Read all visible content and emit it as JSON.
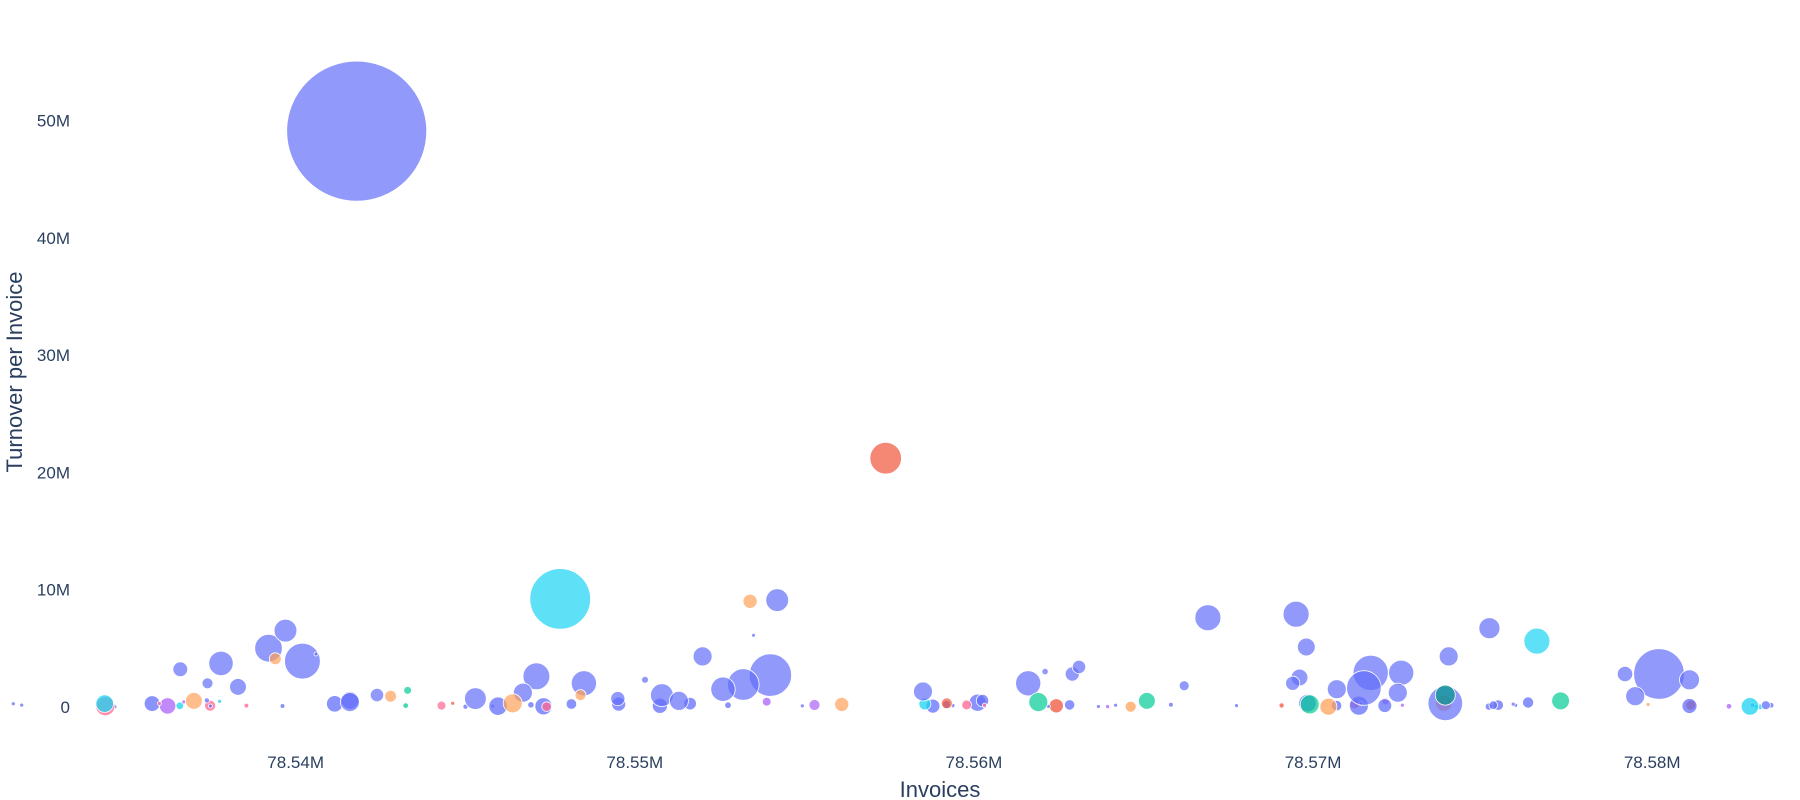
{
  "chart_data": {
    "type": "scatter",
    "title": "",
    "xlabel": "Invoices",
    "ylabel": "Turnover per Invoice",
    "xlim": [
      78536000,
      78582000
    ],
    "ylim": [
      -700000,
      59000000
    ],
    "grid": false,
    "legend": "none",
    "x_ticks": [
      {
        "value": 78540000,
        "label": "78.54M"
      },
      {
        "value": 78550000,
        "label": "78.55M"
      },
      {
        "value": 78560000,
        "label": "78.56M"
      },
      {
        "value": 78570000,
        "label": "78.57M"
      },
      {
        "value": 78580000,
        "label": "78.58M"
      }
    ],
    "y_ticks": [
      {
        "value": 0,
        "label": "0"
      },
      {
        "value": 10000000,
        "label": "10M"
      },
      {
        "value": 20000000,
        "label": "20M"
      },
      {
        "value": 30000000,
        "label": "30M"
      },
      {
        "value": 40000000,
        "label": "40M"
      },
      {
        "value": 50000000,
        "label": "50M"
      }
    ],
    "colors": {
      "blue": "#636efa",
      "red": "#ef553b",
      "green": "#00cc96",
      "orange": "#ffa15a",
      "cyan": "#19d3f3",
      "purple": "#ab63fa",
      "pink": "#ff6692",
      "teal": "#009688"
    },
    "points": [
      {
        "x": 78541800,
        "y": 49100000,
        "size": 49100000,
        "color": "blue"
      },
      {
        "x": 78557400,
        "y": 21200000,
        "size": 2500000,
        "color": "red"
      },
      {
        "x": 78547800,
        "y": 9200000,
        "size": 9200000,
        "color": "cyan"
      },
      {
        "x": 78553400,
        "y": 9000000,
        "size": 500000,
        "color": "orange"
      },
      {
        "x": 78554200,
        "y": 9100000,
        "size": 1300000,
        "color": "blue"
      },
      {
        "x": 78553500,
        "y": 6100000,
        "size": 20000,
        "color": "blue"
      },
      {
        "x": 78540600,
        "y": 4500000,
        "size": 20000,
        "color": "blue"
      },
      {
        "x": 78536600,
        "y": 3200000,
        "size": 550000,
        "color": "blue"
      },
      {
        "x": 78537800,
        "y": 3700000,
        "size": 1500000,
        "color": "blue"
      },
      {
        "x": 78538300,
        "y": 1700000,
        "size": 700000,
        "color": "blue"
      },
      {
        "x": 78537400,
        "y": 2000000,
        "size": 300000,
        "color": "blue"
      },
      {
        "x": 78539200,
        "y": 5000000,
        "size": 1900000,
        "color": "blue"
      },
      {
        "x": 78539400,
        "y": 4100000,
        "size": 350000,
        "color": "orange"
      },
      {
        "x": 78539700,
        "y": 6500000,
        "size": 1300000,
        "color": "blue"
      },
      {
        "x": 78540200,
        "y": 3900000,
        "size": 3200000,
        "color": "blue"
      },
      {
        "x": 78547100,
        "y": 2600000,
        "size": 1800000,
        "color": "blue"
      },
      {
        "x": 78548500,
        "y": 2000000,
        "size": 1600000,
        "color": "blue"
      },
      {
        "x": 78548400,
        "y": 1000000,
        "size": 300000,
        "color": "orange"
      },
      {
        "x": 78550300,
        "y": 2300000,
        "size": 120000,
        "color": "blue"
      },
      {
        "x": 78552000,
        "y": 4300000,
        "size": 900000,
        "color": "blue"
      },
      {
        "x": 78553200,
        "y": 1900000,
        "size": 2500000,
        "color": "blue"
      },
      {
        "x": 78554000,
        "y": 2700000,
        "size": 4500000,
        "color": "blue"
      },
      {
        "x": 78549500,
        "y": 700000,
        "size": 500000,
        "color": "blue"
      },
      {
        "x": 78550800,
        "y": 1000000,
        "size": 1300000,
        "color": "blue"
      },
      {
        "x": 78551300,
        "y": 500000,
        "size": 900000,
        "color": "blue"
      },
      {
        "x": 78552600,
        "y": 1500000,
        "size": 1500000,
        "color": "blue"
      },
      {
        "x": 78546700,
        "y": 1200000,
        "size": 900000,
        "color": "blue"
      },
      {
        "x": 78543300,
        "y": 1400000,
        "size": 150000,
        "color": "green"
      },
      {
        "x": 78542400,
        "y": 1000000,
        "size": 450000,
        "color": "blue"
      },
      {
        "x": 78541600,
        "y": 400000,
        "size": 900000,
        "color": "blue"
      },
      {
        "x": 78545300,
        "y": 700000,
        "size": 1200000,
        "color": "blue"
      },
      {
        "x": 78558500,
        "y": 1300000,
        "size": 900000,
        "color": "blue"
      },
      {
        "x": 78561600,
        "y": 2000000,
        "size": 1600000,
        "color": "blue"
      },
      {
        "x": 78562100,
        "y": 3000000,
        "size": 100000,
        "color": "blue"
      },
      {
        "x": 78562900,
        "y": 2800000,
        "size": 500000,
        "color": "blue"
      },
      {
        "x": 78563100,
        "y": 3400000,
        "size": 450000,
        "color": "blue"
      },
      {
        "x": 78566200,
        "y": 1800000,
        "size": 250000,
        "color": "blue"
      },
      {
        "x": 78566900,
        "y": 7600000,
        "size": 1700000,
        "color": "blue"
      },
      {
        "x": 78569400,
        "y": 2000000,
        "size": 500000,
        "color": "blue"
      },
      {
        "x": 78569500,
        "y": 7900000,
        "size": 1700000,
        "color": "blue"
      },
      {
        "x": 78569800,
        "y": 5100000,
        "size": 800000,
        "color": "blue"
      },
      {
        "x": 78569600,
        "y": 2500000,
        "size": 700000,
        "color": "blue"
      },
      {
        "x": 78570700,
        "y": 1500000,
        "size": 900000,
        "color": "blue"
      },
      {
        "x": 78571700,
        "y": 2900000,
        "size": 3100000,
        "color": "blue"
      },
      {
        "x": 78571500,
        "y": 1600000,
        "size": 3000000,
        "color": "blue"
      },
      {
        "x": 78572600,
        "y": 2900000,
        "size": 1600000,
        "color": "blue"
      },
      {
        "x": 78572500,
        "y": 1200000,
        "size": 900000,
        "color": "blue"
      },
      {
        "x": 78574000,
        "y": 4300000,
        "size": 900000,
        "color": "blue"
      },
      {
        "x": 78575200,
        "y": 6700000,
        "size": 1100000,
        "color": "blue"
      },
      {
        "x": 78576600,
        "y": 5600000,
        "size": 1700000,
        "color": "cyan"
      },
      {
        "x": 78573900,
        "y": 1000000,
        "size": 1000000,
        "color": "teal"
      },
      {
        "x": 78573900,
        "y": 300000,
        "size": 3000000,
        "color": "blue"
      },
      {
        "x": 78579200,
        "y": 2800000,
        "size": 600000,
        "color": "blue"
      },
      {
        "x": 78580200,
        "y": 2800000,
        "size": 6400000,
        "color": "blue"
      },
      {
        "x": 78581100,
        "y": 2300000,
        "size": 1000000,
        "color": "blue"
      },
      {
        "x": 78579500,
        "y": 900000,
        "size": 900000,
        "color": "blue"
      },
      {
        "x": 78577300,
        "y": 500000,
        "size": 800000,
        "color": "green"
      },
      {
        "x": 78565100,
        "y": 500000,
        "size": 700000,
        "color": "green"
      },
      {
        "x": 78561900,
        "y": 400000,
        "size": 900000,
        "color": "green"
      },
      {
        "x": 78556100,
        "y": 200000,
        "size": 500000,
        "color": "orange"
      },
      {
        "x": 78537000,
        "y": 500000,
        "size": 700000,
        "color": "orange"
      },
      {
        "x": 78546400,
        "y": 300000,
        "size": 900000,
        "color": "orange"
      },
      {
        "x": 78542800,
        "y": 900000,
        "size": 350000,
        "color": "orange"
      },
      {
        "x": 78569900,
        "y": 200000,
        "size": 900000,
        "color": "green"
      },
      {
        "x": 78559200,
        "y": 300000,
        "size": 300000,
        "color": "red"
      },
      {
        "x": 78544300,
        "y": 100000,
        "size": 200000,
        "color": "pink"
      },
      {
        "x": 78555300,
        "y": 150000,
        "size": 300000,
        "color": "purple"
      }
    ]
  }
}
